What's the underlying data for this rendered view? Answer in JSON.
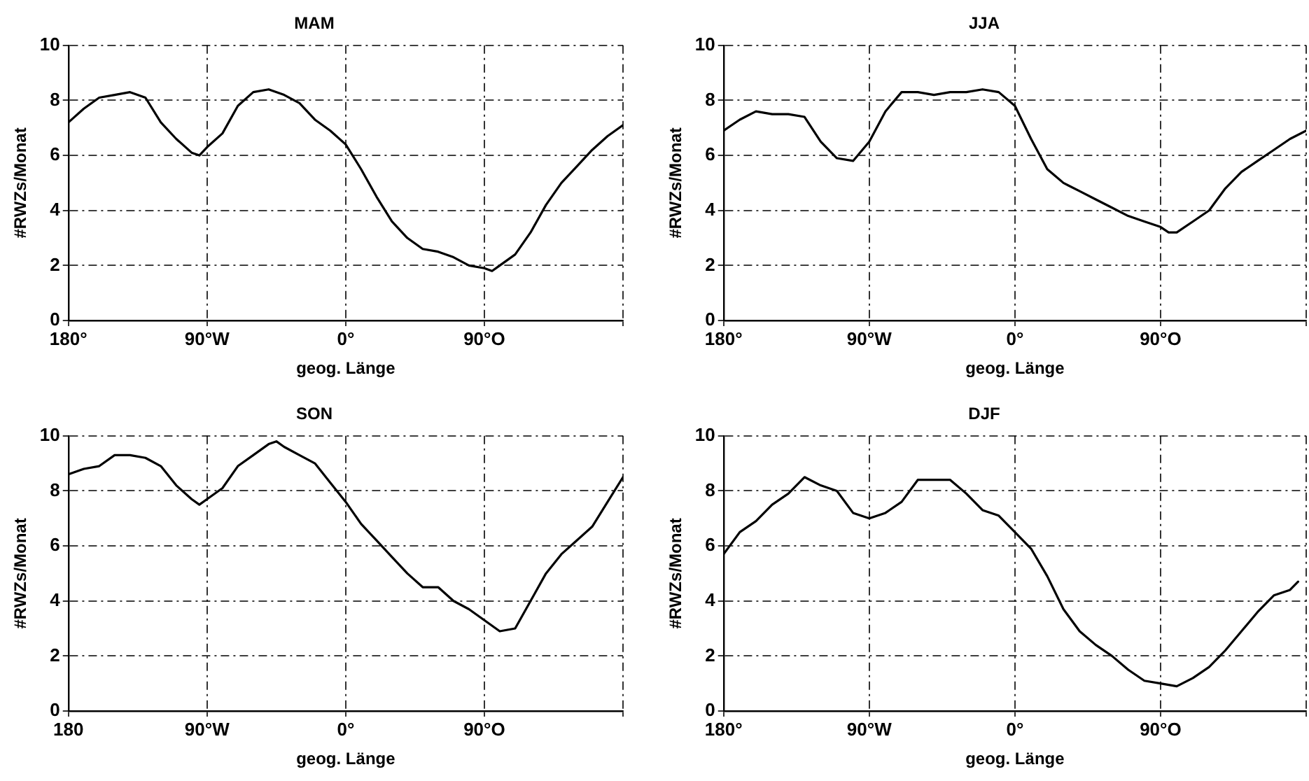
{
  "chart_data": [
    {
      "type": "line",
      "title": "MAM",
      "xlabel": "geog. Länge",
      "ylabel": "#RWZs/Monat",
      "color": "#000000",
      "marker": "none",
      "line_style": "solid",
      "grid": true,
      "x": [
        -180,
        -170,
        -160,
        -150,
        -140,
        -130,
        -120,
        -110,
        -100,
        -95,
        -90,
        -80,
        -70,
        -60,
        -50,
        -40,
        -30,
        -20,
        -10,
        0,
        10,
        20,
        30,
        40,
        50,
        60,
        70,
        80,
        90,
        95,
        100,
        110,
        120,
        130,
        140,
        150,
        160,
        170,
        180
      ],
      "values": [
        7.2,
        7.7,
        8.1,
        8.2,
        8.3,
        8.1,
        7.2,
        6.6,
        6.1,
        6.0,
        6.3,
        6.8,
        7.8,
        8.3,
        8.4,
        8.2,
        7.9,
        7.3,
        6.9,
        6.4,
        5.5,
        4.5,
        3.6,
        3.0,
        2.6,
        2.5,
        2.3,
        2.0,
        1.9,
        1.8,
        2.0,
        2.4,
        3.2,
        4.2,
        5.0,
        5.6,
        6.2,
        6.7,
        7.1
      ],
      "xlim": [
        -180,
        180
      ],
      "ylim": [
        0,
        10
      ],
      "xticks": [
        {
          "value": -180,
          "label": "180°"
        },
        {
          "value": -90,
          "label": "90°W"
        },
        {
          "value": 0,
          "label": "0°"
        },
        {
          "value": 90,
          "label": "90°O"
        },
        {
          "value": 180,
          "label": null
        }
      ],
      "yticks": [
        0,
        2,
        4,
        6,
        8,
        10
      ]
    },
    {
      "type": "line",
      "title": "JJA",
      "xlabel": "geog. Länge",
      "ylabel": "#RWZs/Monat",
      "color": "#000000",
      "marker": "none",
      "line_style": "solid",
      "grid": true,
      "x": [
        -180,
        -170,
        -160,
        -150,
        -140,
        -130,
        -120,
        -110,
        -100,
        -90,
        -80,
        -70,
        -60,
        -50,
        -40,
        -30,
        -20,
        -10,
        0,
        10,
        20,
        30,
        40,
        50,
        60,
        70,
        80,
        90,
        95,
        100,
        110,
        120,
        130,
        140,
        150,
        160,
        170,
        180
      ],
      "values": [
        6.9,
        7.3,
        7.6,
        7.5,
        7.5,
        7.4,
        6.5,
        5.9,
        5.8,
        6.5,
        7.6,
        8.3,
        8.3,
        8.2,
        8.3,
        8.3,
        8.4,
        8.3,
        7.8,
        6.6,
        5.5,
        5.0,
        4.7,
        4.4,
        4.1,
        3.8,
        3.6,
        3.4,
        3.2,
        3.2,
        3.6,
        4.0,
        4.8,
        5.4,
        5.8,
        6.2,
        6.6,
        6.9
      ],
      "xlim": [
        -180,
        180
      ],
      "ylim": [
        0,
        10
      ],
      "xticks": [
        {
          "value": -180,
          "label": "180°"
        },
        {
          "value": -90,
          "label": "90°W"
        },
        {
          "value": 0,
          "label": "0°"
        },
        {
          "value": 90,
          "label": "90°O"
        },
        {
          "value": 180,
          "label": null
        }
      ],
      "yticks": [
        0,
        2,
        4,
        6,
        8,
        10
      ]
    },
    {
      "type": "line",
      "title": "SON",
      "xlabel": "geog. Länge",
      "ylabel": "#RWZs/Monat",
      "color": "#000000",
      "marker": "none",
      "line_style": "solid",
      "grid": true,
      "x": [
        -180,
        -170,
        -160,
        -150,
        -140,
        -130,
        -120,
        -110,
        -100,
        -95,
        -90,
        -80,
        -70,
        -60,
        -50,
        -45,
        -40,
        -30,
        -20,
        -10,
        0,
        10,
        20,
        30,
        40,
        50,
        60,
        70,
        80,
        90,
        100,
        110,
        120,
        130,
        140,
        150,
        160,
        170,
        180
      ],
      "values": [
        8.6,
        8.8,
        8.9,
        9.3,
        9.3,
        9.2,
        8.9,
        8.2,
        7.7,
        7.5,
        7.7,
        8.1,
        8.9,
        9.3,
        9.7,
        9.8,
        9.6,
        9.3,
        9.0,
        8.3,
        7.6,
        6.8,
        6.2,
        5.6,
        5.0,
        4.5,
        4.5,
        4.0,
        3.7,
        3.3,
        2.9,
        3.0,
        4.0,
        5.0,
        5.7,
        6.2,
        6.7,
        7.6,
        8.5
      ],
      "xlim": [
        -180,
        180
      ],
      "ylim": [
        0,
        10
      ],
      "xticks": [
        {
          "value": -180,
          "label": "180"
        },
        {
          "value": -90,
          "label": "90°W"
        },
        {
          "value": 0,
          "label": "0°"
        },
        {
          "value": 90,
          "label": "90°O"
        },
        {
          "value": 180,
          "label": null
        }
      ],
      "yticks": [
        0,
        2,
        4,
        6,
        8,
        10
      ]
    },
    {
      "type": "line",
      "title": "DJF",
      "xlabel": "geog. Länge",
      "ylabel": "#RWZs/Monat",
      "color": "#000000",
      "marker": "none",
      "line_style": "solid",
      "grid": true,
      "x": [
        -180,
        -170,
        -160,
        -150,
        -140,
        -130,
        -120,
        -110,
        -100,
        -90,
        -80,
        -70,
        -60,
        -50,
        -40,
        -30,
        -20,
        -10,
        0,
        10,
        20,
        30,
        40,
        50,
        60,
        70,
        80,
        90,
        100,
        110,
        120,
        130,
        140,
        150,
        160,
        170,
        175
      ],
      "values": [
        5.7,
        6.5,
        6.9,
        7.5,
        7.9,
        8.5,
        8.2,
        8.0,
        7.2,
        7.0,
        7.2,
        7.6,
        8.4,
        8.4,
        8.4,
        7.9,
        7.3,
        7.1,
        6.5,
        5.9,
        4.9,
        3.7,
        2.9,
        2.4,
        2.0,
        1.5,
        1.1,
        1.0,
        0.9,
        1.2,
        1.6,
        2.2,
        2.9,
        3.6,
        4.2,
        4.4,
        4.7
      ],
      "xlim": [
        -180,
        180
      ],
      "ylim": [
        0,
        10
      ],
      "xticks": [
        {
          "value": -180,
          "label": "180°"
        },
        {
          "value": -90,
          "label": "90°W"
        },
        {
          "value": 0,
          "label": "0°"
        },
        {
          "value": 90,
          "label": "90°O"
        },
        {
          "value": 180,
          "label": null
        }
      ],
      "yticks": [
        0,
        2,
        4,
        6,
        8,
        10
      ]
    }
  ]
}
